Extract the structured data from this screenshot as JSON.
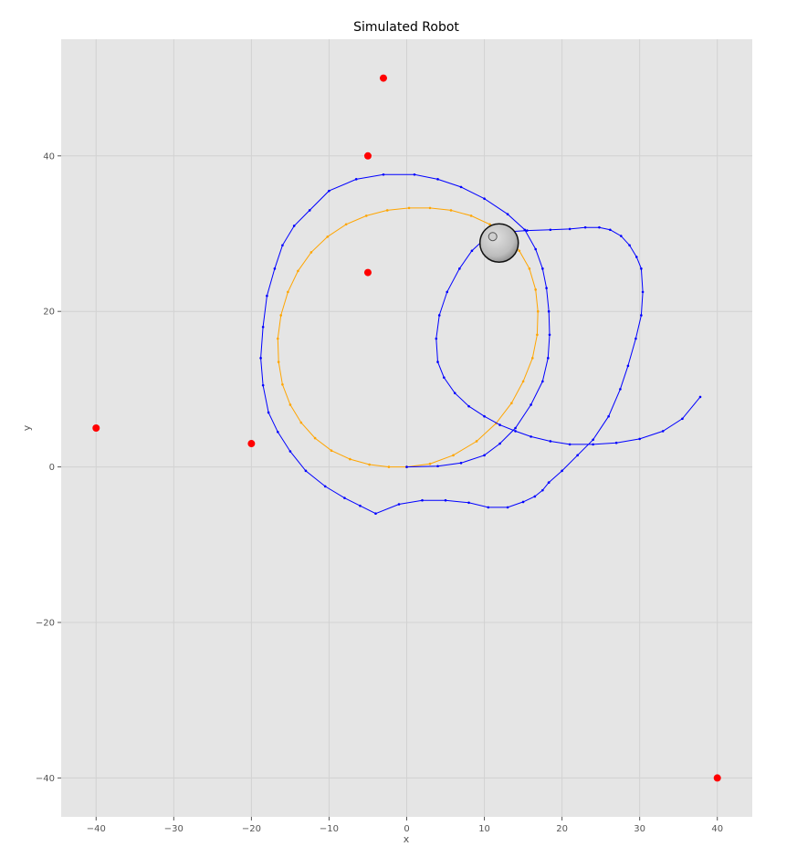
{
  "chart_data": {
    "type": "scatter",
    "title": "Simulated Robot",
    "xlabel": "x",
    "ylabel": "y",
    "xlim": [
      -44.5,
      44.5
    ],
    "ylim": [
      -45,
      55
    ],
    "xticks": [
      -40,
      -30,
      -20,
      -10,
      0,
      10,
      20,
      30,
      40
    ],
    "yticks": [
      -40,
      -20,
      0,
      20,
      40
    ],
    "xtick_labels": [
      "−40",
      "−30",
      "−20",
      "−10",
      "0",
      "10",
      "20",
      "30",
      "40"
    ],
    "ytick_labels": [
      "−40",
      "−20",
      "0",
      "20",
      "40"
    ],
    "grid": true,
    "colors": {
      "background": "#e5e5e5",
      "grid": "#d2d2d2",
      "landmarks": "#ff0000",
      "true_path": "#0000ff",
      "estimated_path": "#ffa500",
      "robot": "#bdbdbd"
    },
    "landmarks": {
      "x": [
        -3,
        -5,
        -5,
        -40,
        -20,
        40
      ],
      "y": [
        50,
        40,
        25,
        5,
        3,
        -40
      ]
    },
    "true_path": {
      "x": [
        0,
        4,
        7,
        10,
        12,
        14,
        16,
        17.5,
        18.2,
        18.4,
        18.3,
        18,
        17.5,
        16.6,
        15.2,
        13,
        10,
        7,
        4,
        1,
        -3,
        -6.5,
        -10,
        -12.5,
        -14.5,
        -16,
        -17,
        -18,
        -18.5,
        -18.8,
        -18.5,
        -17.8,
        -16.6,
        -15,
        -13,
        -10.5,
        -8,
        -6,
        -4,
        -1,
        2,
        5,
        8,
        10.5,
        13,
        15,
        16.5,
        17.5,
        18.3
      ],
      "y": [
        0,
        0.1,
        0.5,
        1.5,
        3,
        5,
        8,
        11,
        14,
        17,
        20,
        23,
        25.5,
        28,
        30.5,
        32.5,
        34.5,
        36,
        37,
        37.6,
        37.6,
        37,
        35.5,
        33,
        31,
        28.5,
        25.5,
        22,
        18,
        14,
        10.5,
        7,
        4.5,
        2,
        -0.5,
        -2.5,
        -4,
        -5,
        -6,
        -4.8,
        -4.3,
        -4.3,
        -4.6,
        -5.2,
        -5.2,
        -4.5,
        -3.8,
        -3,
        -2
      ]
    },
    "true_path_2": {
      "x": [
        18.3,
        20,
        22,
        24,
        26,
        27.5,
        28.5,
        29.5,
        30.2,
        30.4,
        30.2,
        29.6,
        28.7,
        27.6,
        26.2,
        24.8,
        23,
        21,
        18.5,
        15.5,
        12.5,
        10,
        8.4,
        6.8,
        5.2,
        4.2,
        3.8,
        4,
        4.8,
        6.2,
        8,
        10,
        12,
        14,
        16,
        18.5,
        21,
        24,
        27,
        30,
        33,
        35.5,
        37.8
      ],
      "y": [
        -2,
        -0.5,
        1.5,
        3.5,
        6.5,
        10,
        13,
        16.5,
        19.5,
        22.5,
        25.5,
        27,
        28.5,
        29.7,
        30.5,
        30.8,
        30.8,
        30.6,
        30.5,
        30.4,
        30.2,
        29.3,
        27.8,
        25.5,
        22.5,
        19.5,
        16.5,
        13.5,
        11.5,
        9.5,
        7.8,
        6.5,
        5.4,
        4.6,
        3.9,
        3.3,
        2.9,
        2.9,
        3.1,
        3.6,
        4.6,
        6.2,
        9
      ]
    },
    "estimated_path": {
      "x": [
        0,
        3,
        6,
        9,
        11.5,
        13.5,
        15,
        16.2,
        16.8,
        16.9,
        16.6,
        15.8,
        14.5,
        12.8,
        10.7,
        8.3,
        5.7,
        3,
        0.3,
        -2.5,
        -5.2,
        -7.8,
        -10.2,
        -12.3,
        -14,
        -15.3,
        -16.2,
        -16.6,
        -16.5,
        -16,
        -15,
        -13.6,
        -11.8,
        -9.7,
        -7.3,
        -4.8,
        -2.3,
        0
      ],
      "y": [
        0,
        0.4,
        1.5,
        3.3,
        5.6,
        8.2,
        11,
        14,
        17,
        20,
        22.8,
        25.5,
        27.8,
        29.7,
        31.2,
        32.3,
        33,
        33.3,
        33.3,
        33,
        32.3,
        31.2,
        29.6,
        27.6,
        25.2,
        22.5,
        19.5,
        16.5,
        13.5,
        10.6,
        8,
        5.7,
        3.7,
        2.1,
        1,
        0.3,
        0,
        0
      ]
    },
    "robot": {
      "x": 11.9,
      "y": 28.8
    }
  }
}
